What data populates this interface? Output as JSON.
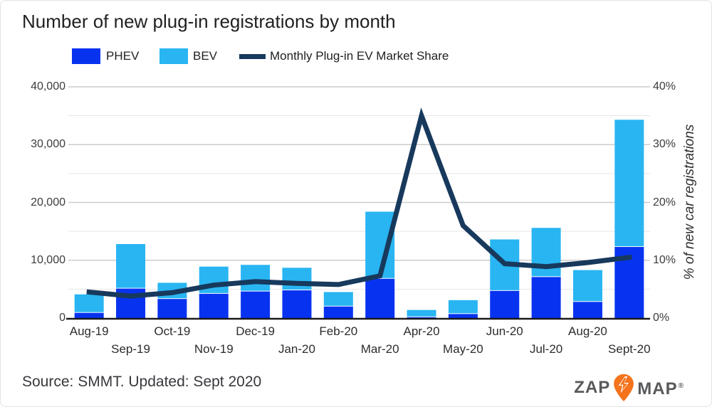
{
  "title": "Number of new plug-in registrations by month",
  "legend": {
    "phev": {
      "label": "PHEV",
      "color": "#0733f0"
    },
    "bev": {
      "label": "BEV",
      "color": "#29b5f2"
    },
    "share": {
      "label": "Monthly Plug-in EV Market Share",
      "color": "#17395c"
    }
  },
  "source_note": "Source: SMMT. Updated: Sept 2020",
  "logo": {
    "zap": "ZAP",
    "map": "MAP",
    "registered": "®",
    "pin_color": "#f4731c",
    "text_color": "#58595b"
  },
  "chart_data": {
    "type": "bar",
    "subtype": "stacked bars with overlay line on secondary percent axis",
    "categories": [
      "Aug-19",
      "Sep-19",
      "Oct-19",
      "Nov-19",
      "Dec-19",
      "Jan-20",
      "Feb-20",
      "Mar-20",
      "Apr-20",
      "May-20",
      "Jun-20",
      "Jul-20",
      "Aug-20",
      "Sept-20"
    ],
    "series": [
      {
        "name": "PHEV",
        "type": "bar",
        "stack": true,
        "color": "#0733f0",
        "values": [
          900,
          5100,
          3300,
          4200,
          4600,
          4800,
          2000,
          6800,
          150,
          700,
          4700,
          7100,
          2800,
          12300
        ]
      },
      {
        "name": "BEV",
        "type": "bar",
        "stack": true,
        "color": "#29b5f2",
        "values": [
          3200,
          7700,
          2800,
          4700,
          4600,
          3900,
          2500,
          11600,
          1250,
          2400,
          8900,
          8500,
          5500,
          22000
        ]
      },
      {
        "name": "Monthly Plug-in EV Market Share",
        "type": "line",
        "axis": "right",
        "color": "#17395c",
        "values": [
          4.5,
          3.8,
          4.4,
          5.7,
          6.3,
          6.0,
          5.8,
          7.3,
          35.0,
          16.0,
          9.4,
          8.9,
          9.6,
          10.5
        ]
      }
    ],
    "left_axis": {
      "ticks": [
        "0",
        "10,000",
        "20,000",
        "30,000",
        "40,000"
      ],
      "min": 0,
      "max": 40000,
      "minor_step": 5000
    },
    "right_axis": {
      "ticks": [
        "0%",
        "10%",
        "20%",
        "30%",
        "40%"
      ],
      "min": 0,
      "max": 40,
      "label": "% of new car registrations"
    },
    "grid": {
      "major_color": "#cccccc",
      "minor_color": "#e5e5e5",
      "baseline_color": "#1a1a1a"
    },
    "legend_position": "top",
    "title": "Number of new plug-in registrations by month"
  }
}
